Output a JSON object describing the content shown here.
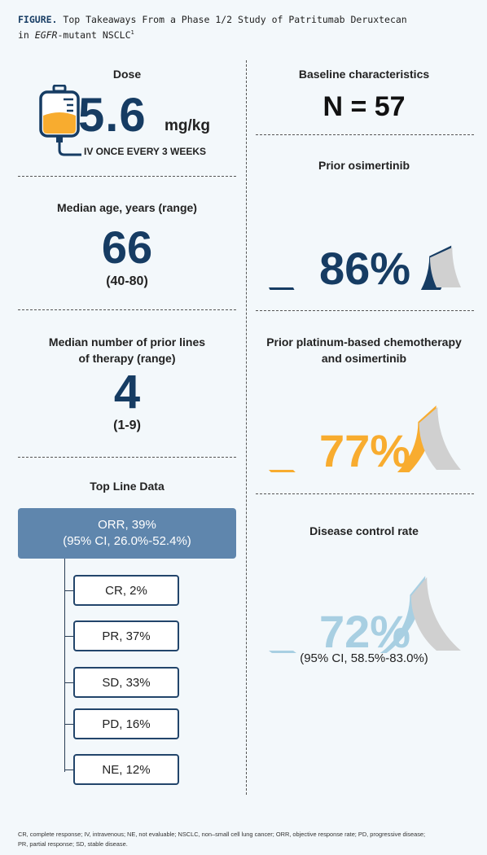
{
  "header": {
    "label": "FIGURE.",
    "title_line1": " Top Takeaways From a Phase 1/2 Study of Patritumab Deruxtecan",
    "title_pre": "in ",
    "title_italic": "EGFR",
    "title_post": "-mutant NSCLC",
    "ref": "1"
  },
  "left": {
    "dose": {
      "title": "Dose",
      "value": "5.6",
      "unit": "mg/kg",
      "schedule": "IV ONCE EVERY 3 WEEKS"
    },
    "age": {
      "title": "Median age, years (range)",
      "value": "66",
      "range": "(40-80)"
    },
    "lines": {
      "title_line1": "Median number of prior lines",
      "title_line2": "of therapy (range)",
      "value": "4",
      "range": "(1-9)"
    },
    "topline": {
      "title": "Top Line Data",
      "orr_line1": "ORR, 39%",
      "orr_line2": "(95% CI, 26.0%-52.4%)",
      "items": [
        "CR, 2%",
        "PR, 37%",
        "SD, 33%",
        "PD, 16%",
        "NE, 12%"
      ]
    }
  },
  "right": {
    "baseline": {
      "title": "Baseline characteristics",
      "value": "N = 57"
    },
    "ci": "(95% CI, 58.5%-83.0%)"
  },
  "chart_data": [
    {
      "type": "gauge",
      "title": "Prior osimertinib",
      "value": 86,
      "label": "86%",
      "color": "#163c63",
      "track_color": "#d0d0d0"
    },
    {
      "type": "gauge",
      "title_line1": "Prior platinum-based chemotherapy",
      "title_line2": "and osimertinib",
      "value": 77,
      "label": "77%",
      "color": "#f8ac2f",
      "track_color": "#d0d0d0"
    },
    {
      "type": "gauge",
      "title": "Disease control rate",
      "value": 72,
      "label": "72%",
      "color": "#a8cfe2",
      "track_color": "#d0d0d0"
    }
  ],
  "footnote_line1": "CR, complete response; IV, intravenous; NE, not evaluable; NSCLC, non–small cell lung cancer; ORR, objective response rate; PD, progressive disease;",
  "footnote_line2": "PR, partial response; SD, stable disease."
}
